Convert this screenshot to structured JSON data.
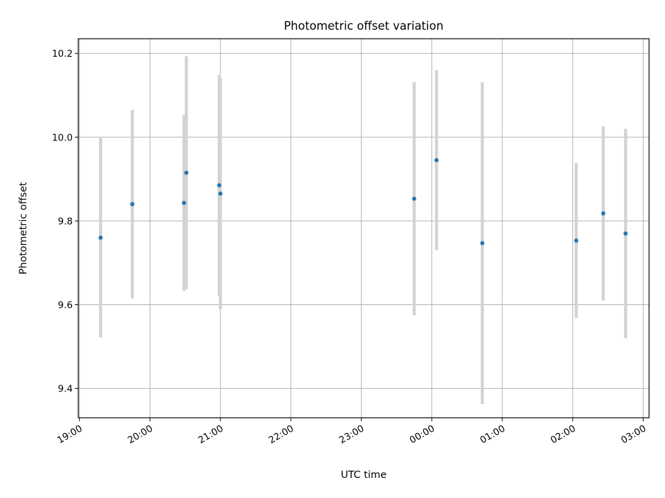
{
  "chart_data": {
    "type": "scatter",
    "title": "Photometric offset variation",
    "xlabel": "UTC time",
    "ylabel": "Photometric offset",
    "x_ticks": [
      "19:00",
      "20:00",
      "21:00",
      "22:00",
      "23:00",
      "00:00",
      "01:00",
      "02:00",
      "03:00"
    ],
    "y_ticks": [
      "9.4",
      "9.6",
      "9.8",
      "10.0",
      "10.2"
    ],
    "xlim": [
      "18:59",
      "03:05"
    ],
    "ylim": [
      9.33,
      10.235
    ],
    "grid": true,
    "marker_color": "#1f77b4",
    "errorbar_color": "#d3d3d3",
    "points": [
      {
        "time": "19:18",
        "y": 9.76,
        "err": 0.238
      },
      {
        "time": "19:45",
        "y": 9.84,
        "err": 0.225
      },
      {
        "time": "20:29",
        "y": 9.843,
        "err": 0.21
      },
      {
        "time": "20:31",
        "y": 9.915,
        "err": 0.278
      },
      {
        "time": "20:59",
        "y": 9.885,
        "err": 0.264
      },
      {
        "time": "21:00",
        "y": 9.865,
        "err": 0.276
      },
      {
        "time": "23:45",
        "y": 9.853,
        "err": 0.278
      },
      {
        "time": "00:04",
        "y": 9.945,
        "err": 0.215
      },
      {
        "time": "00:43",
        "y": 9.747,
        "err": 0.384
      },
      {
        "time": "02:03",
        "y": 9.753,
        "err": 0.185
      },
      {
        "time": "02:26",
        "y": 9.818,
        "err": 0.208
      },
      {
        "time": "02:45",
        "y": 9.77,
        "err": 0.25
      }
    ]
  }
}
